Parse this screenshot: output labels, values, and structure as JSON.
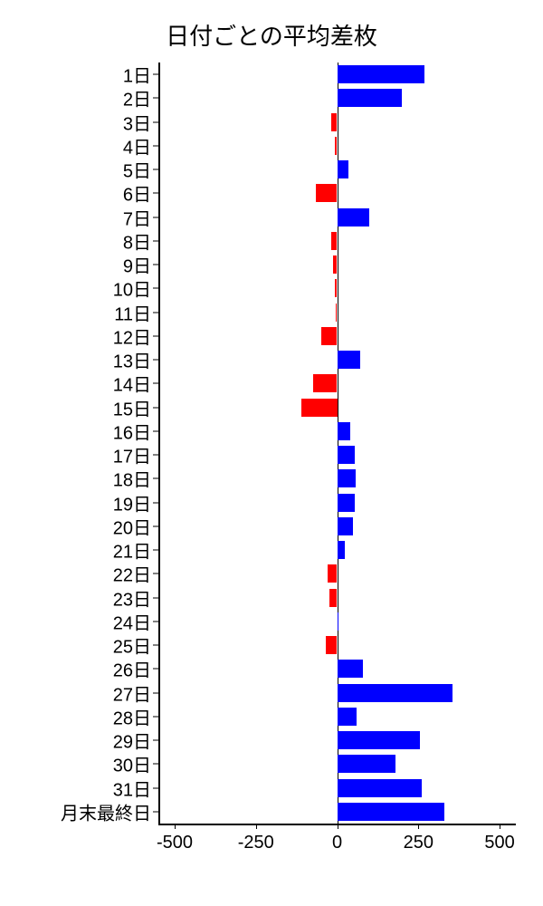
{
  "chart": {
    "type": "bar",
    "orientation": "horizontal",
    "title": "日付ごとの平均差枚",
    "title_fontsize": 26,
    "background_color": "#ffffff",
    "text_color": "#000000",
    "positive_color": "#0000ff",
    "negative_color": "#ff0000",
    "xlim": [
      -550,
      550
    ],
    "xticks": [
      -500,
      -250,
      0,
      250,
      500
    ],
    "xtick_labels": [
      "-500",
      "-250",
      "0",
      "250",
      "500"
    ],
    "label_fontsize": 20,
    "bar_height_ratio": 0.77,
    "categories": [
      "1日",
      "2日",
      "3日",
      "4日",
      "5日",
      "6日",
      "7日",
      "8日",
      "9日",
      "10日",
      "11日",
      "12日",
      "13日",
      "14日",
      "15日",
      "16日",
      "17日",
      "18日",
      "19日",
      "20日",
      "21日",
      "22日",
      "23日",
      "24日",
      "25日",
      "26日",
      "27日",
      "28日",
      "29日",
      "30日",
      "31日",
      "月末最終日"
    ],
    "values": [
      270,
      200,
      -18,
      -8,
      35,
      -65,
      100,
      -18,
      -12,
      -8,
      -5,
      -50,
      70,
      -75,
      -110,
      40,
      55,
      58,
      55,
      50,
      25,
      -30,
      -25,
      3,
      -35,
      80,
      355,
      60,
      255,
      180,
      260,
      330
    ]
  }
}
